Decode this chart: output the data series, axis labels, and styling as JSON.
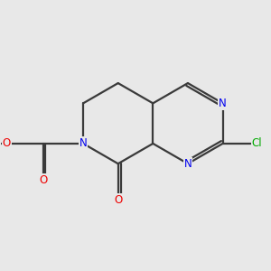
{
  "background_color": "#e8e8e8",
  "bond_color": "#3a3a3a",
  "bond_width": 1.6,
  "atom_colors": {
    "N": "#0000ee",
    "O": "#ee0000",
    "Cl": "#00aa00",
    "C": "#3a3a3a"
  },
  "font_size": 8.5,
  "figsize": [
    3.0,
    3.0
  ],
  "dpi": 100
}
